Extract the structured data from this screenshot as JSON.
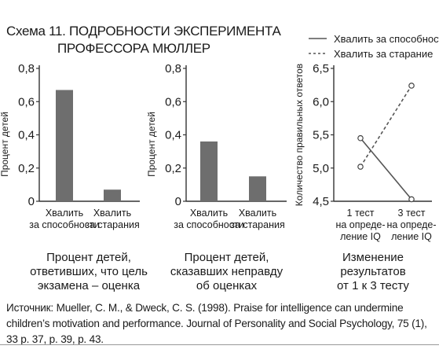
{
  "header": {
    "title_line1": "Схема 11. ПОДРОБНОСТИ ЭКСПЕРИМЕНТА",
    "title_line2": "ПРОФЕССОРА МЮЛЛЕР"
  },
  "legend": {
    "items": [
      {
        "label": "Хвалить за способности",
        "style": "solid"
      },
      {
        "label": "Хвалить за старание",
        "style": "dashed"
      }
    ]
  },
  "colors": {
    "bar": "#6e6e6e",
    "line": "#555555",
    "axis": "#333333"
  },
  "chart_data": [
    {
      "type": "bar",
      "ylabel": "Процент детей",
      "ylim": [
        0,
        0.8
      ],
      "ticks": [
        "0",
        "0,2",
        "0,4",
        "0,6",
        "0,8"
      ],
      "tick_values": [
        0,
        0.2,
        0.4,
        0.6,
        0.8
      ],
      "categories": [
        "Хвалить\nза способности",
        "Хвалить\nза старания"
      ],
      "values": [
        0.67,
        0.07
      ],
      "caption": "Процент детей,\nответивших, что цель\nэкзамена – оценка"
    },
    {
      "type": "bar",
      "ylabel": "Процент детей",
      "ylim": [
        0,
        0.8
      ],
      "ticks": [
        "0",
        "0,2",
        "0,4",
        "0,6",
        "0,8"
      ],
      "tick_values": [
        0,
        0.2,
        0.4,
        0.6,
        0.8
      ],
      "categories": [
        "Хвалить\nза способности",
        "Хвалить\nза старания"
      ],
      "values": [
        0.36,
        0.15
      ],
      "caption": "Процент детей,\nсказавших неправду\nоб оценках"
    },
    {
      "type": "line",
      "ylabel": "Количество правильных ответов",
      "ylim": [
        4.5,
        6.5
      ],
      "ticks": [
        "4,5",
        "5,0",
        "5,5",
        "6,0",
        "6,5"
      ],
      "tick_values": [
        4.5,
        5.0,
        5.5,
        6.0,
        6.5
      ],
      "categories": [
        "1 тест\nна опреде-\nление IQ",
        "3 тест\nна опреде-\nление IQ"
      ],
      "series": [
        {
          "name": "Хвалить за способности",
          "style": "solid",
          "values": [
            5.45,
            4.53
          ]
        },
        {
          "name": "Хвалить за старание",
          "style": "dashed",
          "values": [
            5.02,
            6.24
          ]
        }
      ],
      "caption": "Изменение результатов\nот 1 к 3 тесту"
    }
  ],
  "footer": {
    "source": "Источник: Mueller, C. M., & Dweck, C. S. (1998). Praise for intelligence can undermine children’s motivation and performance. Journal of Personality and Social Psychology, 75 (1), 33 p. 37, p. 39, p. 43."
  }
}
